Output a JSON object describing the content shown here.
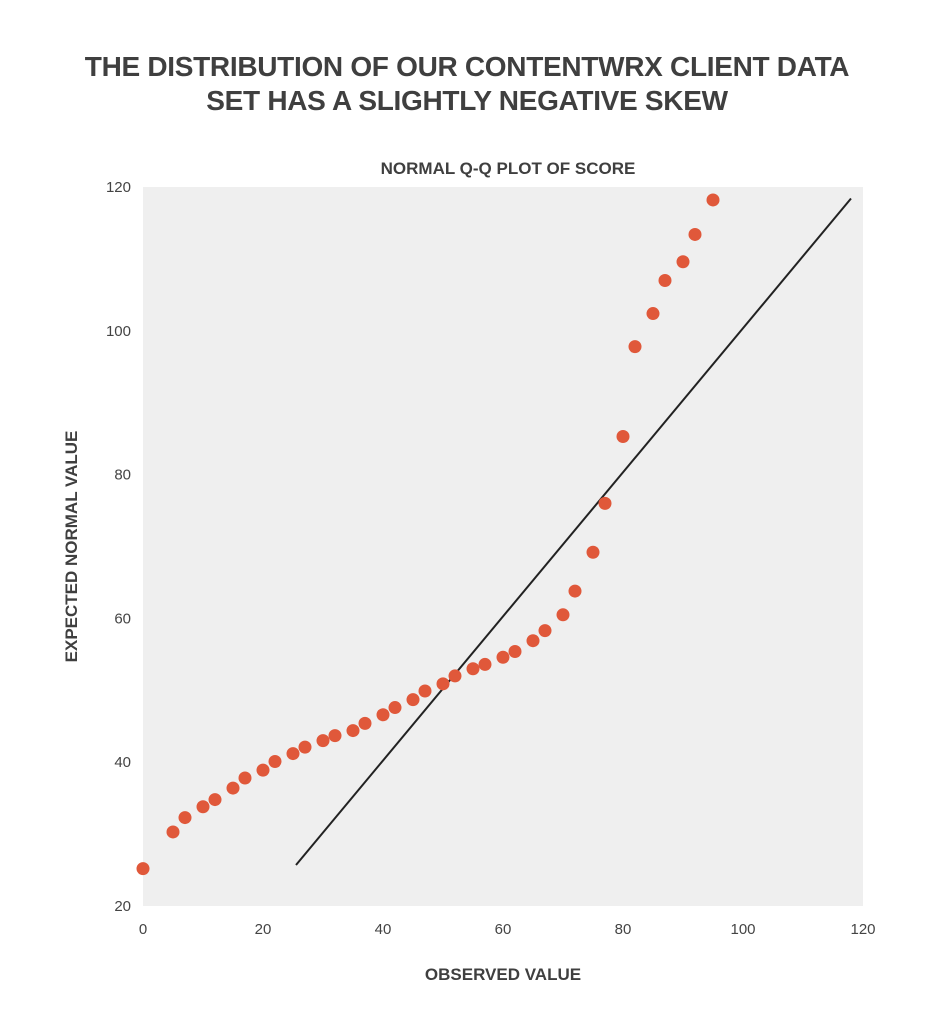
{
  "headline": {
    "line1": "THE DISTRIBUTION OF OUR CONTENTWRX CLIENT DATA",
    "line2": "SET HAS A SLIGHTLY NEGATIVE SKEW"
  },
  "chart_data": {
    "type": "scatter",
    "title": "NORMAL Q-Q PLOT OF SCORE",
    "xlabel": "OBSERVED VALUE",
    "ylabel": "EXPECTED NORMAL VALUE",
    "xlim": [
      0,
      120
    ],
    "ylim": [
      20,
      120
    ],
    "xticks": [
      0,
      20,
      40,
      60,
      80,
      100,
      120
    ],
    "yticks": [
      20,
      40,
      60,
      80,
      100,
      120
    ],
    "grid": false,
    "background": "#efefef",
    "point_color": "#e0583a",
    "line_color": "#222222",
    "points": [
      {
        "x": 0,
        "y": 25.2
      },
      {
        "x": 5,
        "y": 30.3
      },
      {
        "x": 7,
        "y": 32.3
      },
      {
        "x": 10,
        "y": 33.8
      },
      {
        "x": 12,
        "y": 34.8
      },
      {
        "x": 15,
        "y": 36.4
      },
      {
        "x": 17,
        "y": 37.8
      },
      {
        "x": 20,
        "y": 38.9
      },
      {
        "x": 22,
        "y": 40.1
      },
      {
        "x": 25,
        "y": 41.2
      },
      {
        "x": 27,
        "y": 42.1
      },
      {
        "x": 30,
        "y": 43.0
      },
      {
        "x": 32,
        "y": 43.7
      },
      {
        "x": 35,
        "y": 44.4
      },
      {
        "x": 37,
        "y": 45.4
      },
      {
        "x": 40,
        "y": 46.6
      },
      {
        "x": 42,
        "y": 47.6
      },
      {
        "x": 45,
        "y": 48.7
      },
      {
        "x": 47,
        "y": 49.9
      },
      {
        "x": 50,
        "y": 50.9
      },
      {
        "x": 52,
        "y": 52.0
      },
      {
        "x": 55,
        "y": 53.0
      },
      {
        "x": 57,
        "y": 53.6
      },
      {
        "x": 60,
        "y": 54.6
      },
      {
        "x": 62,
        "y": 55.4
      },
      {
        "x": 65,
        "y": 56.9
      },
      {
        "x": 67,
        "y": 58.3
      },
      {
        "x": 70,
        "y": 60.5
      },
      {
        "x": 72,
        "y": 63.8
      },
      {
        "x": 75,
        "y": 69.2
      },
      {
        "x": 77,
        "y": 76.0
      },
      {
        "x": 80,
        "y": 85.3
      },
      {
        "x": 82,
        "y": 97.8
      },
      {
        "x": 85,
        "y": 102.4
      },
      {
        "x": 87,
        "y": 107.0
      },
      {
        "x": 90,
        "y": 109.6
      },
      {
        "x": 92,
        "y": 113.4
      },
      {
        "x": 95,
        "y": 118.2
      }
    ],
    "reference_line": {
      "x1": 25.5,
      "y1": 25.7,
      "x2": 118,
      "y2": 118.4
    }
  }
}
